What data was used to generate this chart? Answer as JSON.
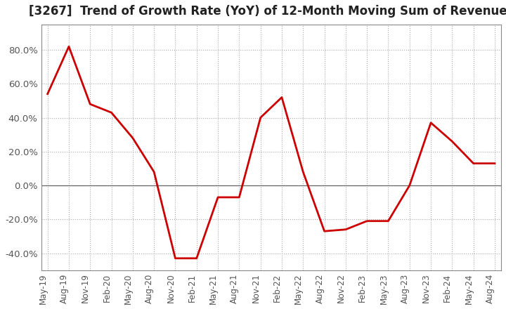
{
  "title": "[3267]  Trend of Growth Rate (YoY) of 12-Month Moving Sum of Revenues",
  "title_fontsize": 12,
  "background_color": "#ffffff",
  "line_color": "#cc0000",
  "grid_color": "#aaaaaa",
  "tick_label_color": "#555555",
  "x_labels": [
    "May-19",
    "Aug-19",
    "Nov-19",
    "Feb-20",
    "May-20",
    "Aug-20",
    "Nov-20",
    "Feb-21",
    "May-21",
    "Aug-21",
    "Nov-21",
    "Feb-22",
    "May-22",
    "Aug-22",
    "Nov-22",
    "Feb-23",
    "May-23",
    "Aug-23",
    "Nov-23",
    "Feb-24",
    "May-24",
    "Aug-24"
  ],
  "y_values": [
    54.0,
    82.0,
    48.0,
    43.0,
    28.0,
    8.0,
    -43.0,
    -43.0,
    -7.0,
    -7.0,
    40.0,
    52.0,
    8.0,
    -27.0,
    -26.0,
    -21.0,
    -21.0,
    0.0,
    37.0,
    26.0,
    13.0,
    13.0
  ],
  "ylim": [
    -50,
    95
  ],
  "yticks": [
    -40,
    -20,
    0,
    20,
    40,
    60,
    80
  ],
  "spine_color": "#888888"
}
